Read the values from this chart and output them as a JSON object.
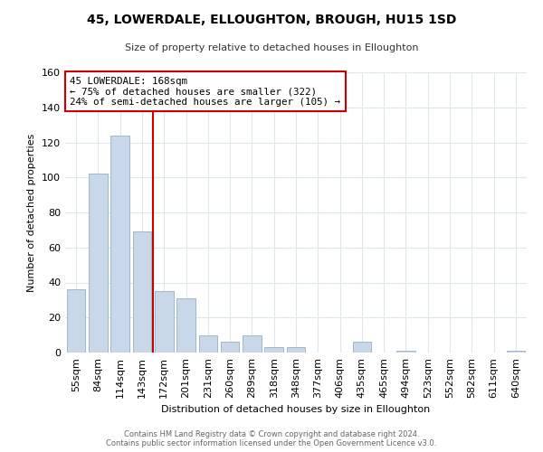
{
  "title": "45, LOWERDALE, ELLOUGHTON, BROUGH, HU15 1SD",
  "subtitle": "Size of property relative to detached houses in Elloughton",
  "xlabel": "Distribution of detached houses by size in Elloughton",
  "ylabel": "Number of detached properties",
  "categories": [
    "55sqm",
    "84sqm",
    "114sqm",
    "143sqm",
    "172sqm",
    "201sqm",
    "231sqm",
    "260sqm",
    "289sqm",
    "318sqm",
    "348sqm",
    "377sqm",
    "406sqm",
    "435sqm",
    "465sqm",
    "494sqm",
    "523sqm",
    "552sqm",
    "582sqm",
    "611sqm",
    "640sqm"
  ],
  "values": [
    36,
    102,
    124,
    69,
    35,
    31,
    10,
    6,
    10,
    3,
    3,
    0,
    0,
    6,
    0,
    1,
    0,
    0,
    0,
    0,
    1
  ],
  "bar_color": "#c8d8e8",
  "bar_edge_color": "#a0b8cc",
  "marker_line_color": "#cc0000",
  "annotation_text": "45 LOWERDALE: 168sqm\n← 75% of detached houses are smaller (322)\n24% of semi-detached houses are larger (105) →",
  "annotation_box_color": "#ffffff",
  "annotation_box_edge": "#cc0000",
  "ylim": [
    0,
    160
  ],
  "yticks": [
    0,
    20,
    40,
    60,
    80,
    100,
    120,
    140,
    160
  ],
  "footer_line1": "Contains HM Land Registry data © Crown copyright and database right 2024.",
  "footer_line2": "Contains public sector information licensed under the Open Government Licence v3.0.",
  "bg_color": "#ffffff",
  "grid_color": "#dce8f0"
}
